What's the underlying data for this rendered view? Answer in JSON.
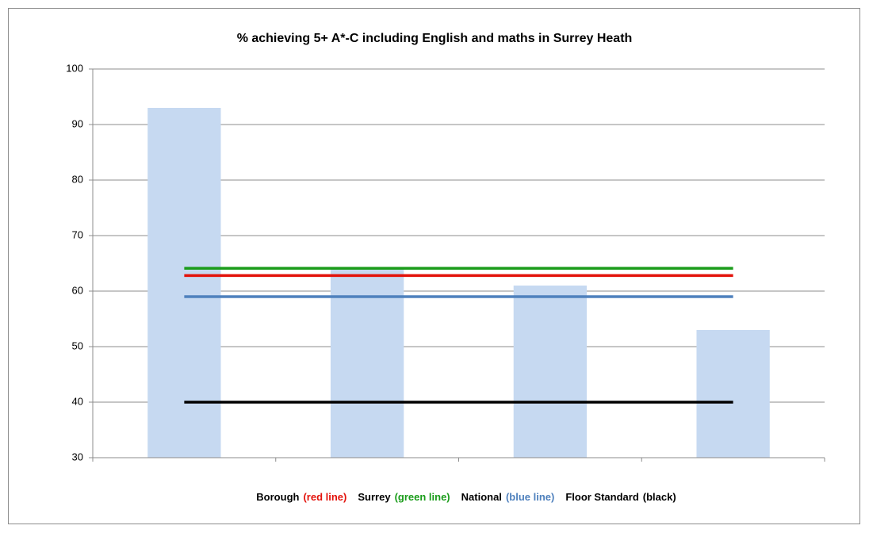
{
  "chart_data": {
    "type": "bar",
    "title": "% achieving 5+ A*-C including English and maths in Surrey Heath",
    "categories": [
      null,
      null,
      null,
      null
    ],
    "values": [
      93,
      64,
      61,
      53
    ],
    "color": "#c6d9f1",
    "series": [
      {
        "name": "Borough",
        "legend_label": "(red line)",
        "color": "#e3120b",
        "type": "line",
        "values": [
          62.8,
          62.8,
          62.8,
          62.8
        ]
      },
      {
        "name": "Surrey",
        "legend_label": "(green line)",
        "color": "#1a9c1a",
        "type": "line",
        "values": [
          64.1,
          64.1,
          64.1,
          64.1
        ]
      },
      {
        "name": "National",
        "legend_label": "(blue line)",
        "color": "#4f81bd",
        "type": "line",
        "values": [
          59,
          59,
          59,
          59
        ]
      },
      {
        "name": "Floor Standard",
        "legend_label": "(black)",
        "color": "#000000",
        "type": "line",
        "values": [
          40,
          40,
          40,
          40
        ]
      }
    ],
    "ylim": [
      30,
      100
    ],
    "yticks": [
      30,
      40,
      50,
      60,
      70,
      80,
      90,
      100
    ],
    "grid": true
  }
}
